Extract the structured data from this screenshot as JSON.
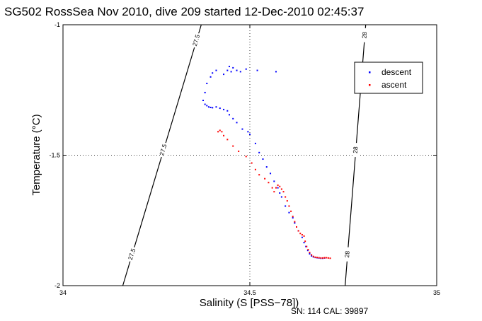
{
  "chart_data": {
    "type": "scatter",
    "title": "SG502 RossSea Nov 2010, dive 209 started 12-Dec-2010 02:45:37",
    "xlabel": "Salinity (S [PSS−78])",
    "ylabel": "Temperature (°C)",
    "xlim": [
      34,
      35
    ],
    "ylim": [
      -2,
      -1
    ],
    "x_ticks": [
      34,
      34.5,
      35
    ],
    "x_tick_labels": [
      "34",
      "34.5",
      "35"
    ],
    "y_ticks": [
      -2,
      -1.5,
      -1
    ],
    "y_tick_labels": [
      "-2",
      "-1.5",
      "-1"
    ],
    "grid": "dotted lines at x=34.5 and y=-1.5",
    "legend_position": "top-right",
    "contours": [
      {
        "label": "27.5",
        "points": [
          [
            34.37,
            -1.0
          ],
          [
            34.16,
            -2.0
          ]
        ],
        "label_y": [
          -1.06,
          -1.48,
          -1.88
        ]
      },
      {
        "label": "28",
        "points": [
          [
            34.81,
            -1.0
          ],
          [
            34.755,
            -2.0
          ]
        ],
        "label_y": [
          -1.04,
          -1.48,
          -1.88
        ]
      }
    ],
    "series": [
      {
        "name": "descent",
        "color": "#0000ff",
        "points": [
          [
            34.57,
            -1.18
          ],
          [
            34.52,
            -1.175
          ],
          [
            34.49,
            -1.17
          ],
          [
            34.475,
            -1.18
          ],
          [
            34.465,
            -1.175
          ],
          [
            34.455,
            -1.165
          ],
          [
            34.45,
            -1.18
          ],
          [
            34.445,
            -1.16
          ],
          [
            34.44,
            -1.175
          ],
          [
            34.43,
            -1.19
          ],
          [
            34.41,
            -1.175
          ],
          [
            34.4,
            -1.185
          ],
          [
            34.395,
            -1.2
          ],
          [
            34.385,
            -1.225
          ],
          [
            34.38,
            -1.26
          ],
          [
            34.375,
            -1.29
          ],
          [
            34.38,
            -1.305
          ],
          [
            34.385,
            -1.31
          ],
          [
            34.39,
            -1.315
          ],
          [
            34.395,
            -1.317
          ],
          [
            34.4,
            -1.318
          ],
          [
            34.41,
            -1.315
          ],
          [
            34.42,
            -1.32
          ],
          [
            34.43,
            -1.325
          ],
          [
            34.44,
            -1.33
          ],
          [
            34.445,
            -1.345
          ],
          [
            34.455,
            -1.36
          ],
          [
            34.465,
            -1.375
          ],
          [
            34.48,
            -1.4
          ],
          [
            34.495,
            -1.41
          ],
          [
            34.5,
            -1.42
          ],
          [
            34.515,
            -1.455
          ],
          [
            34.525,
            -1.49
          ],
          [
            34.535,
            -1.515
          ],
          [
            34.545,
            -1.545
          ],
          [
            34.555,
            -1.57
          ],
          [
            34.565,
            -1.6
          ],
          [
            34.575,
            -1.625
          ],
          [
            34.58,
            -1.645
          ],
          [
            34.585,
            -1.66
          ],
          [
            34.595,
            -1.695
          ],
          [
            34.605,
            -1.72
          ],
          [
            34.615,
            -1.74
          ],
          [
            34.62,
            -1.76
          ],
          [
            34.625,
            -1.775
          ],
          [
            34.63,
            -1.79
          ],
          [
            34.64,
            -1.815
          ],
          [
            34.645,
            -1.835
          ],
          [
            34.65,
            -1.85
          ],
          [
            34.655,
            -1.865
          ],
          [
            34.66,
            -1.878
          ],
          [
            34.665,
            -1.886
          ],
          [
            34.67,
            -1.89
          ],
          [
            34.675,
            -1.892
          ],
          [
            34.68,
            -1.893
          ],
          [
            34.685,
            -1.894
          ],
          [
            34.69,
            -1.895
          ],
          [
            34.695,
            -1.895
          ],
          [
            34.7,
            -1.894
          ]
        ]
      },
      {
        "name": "ascent",
        "color": "#ff0000",
        "points": [
          [
            34.415,
            -1.41
          ],
          [
            34.42,
            -1.405
          ],
          [
            34.425,
            -1.41
          ],
          [
            34.43,
            -1.425
          ],
          [
            34.44,
            -1.44
          ],
          [
            34.455,
            -1.465
          ],
          [
            34.47,
            -1.485
          ],
          [
            34.49,
            -1.505
          ],
          [
            34.505,
            -1.53
          ],
          [
            34.515,
            -1.555
          ],
          [
            34.525,
            -1.575
          ],
          [
            34.54,
            -1.59
          ],
          [
            34.55,
            -1.605
          ],
          [
            34.56,
            -1.625
          ],
          [
            34.565,
            -1.64
          ],
          [
            34.57,
            -1.625
          ],
          [
            34.575,
            -1.615
          ],
          [
            34.58,
            -1.62
          ],
          [
            34.585,
            -1.63
          ],
          [
            34.59,
            -1.64
          ],
          [
            34.595,
            -1.66
          ],
          [
            34.6,
            -1.675
          ],
          [
            34.605,
            -1.695
          ],
          [
            34.61,
            -1.715
          ],
          [
            34.615,
            -1.735
          ],
          [
            34.62,
            -1.755
          ],
          [
            34.625,
            -1.775
          ],
          [
            34.63,
            -1.79
          ],
          [
            34.635,
            -1.8
          ],
          [
            34.64,
            -1.805
          ],
          [
            34.645,
            -1.81
          ],
          [
            34.648,
            -1.83
          ],
          [
            34.652,
            -1.85
          ],
          [
            34.656,
            -1.862
          ],
          [
            34.66,
            -1.873
          ],
          [
            34.665,
            -1.882
          ],
          [
            34.67,
            -1.888
          ],
          [
            34.675,
            -1.891
          ],
          [
            34.68,
            -1.892
          ],
          [
            34.685,
            -1.893
          ],
          [
            34.69,
            -1.894
          ],
          [
            34.695,
            -1.894
          ],
          [
            34.7,
            -1.893
          ],
          [
            34.705,
            -1.893
          ],
          [
            34.71,
            -1.894
          ],
          [
            34.715,
            -1.895
          ]
        ]
      }
    ]
  },
  "footer": {
    "sn": "SN: 114  CAL: 39897"
  }
}
